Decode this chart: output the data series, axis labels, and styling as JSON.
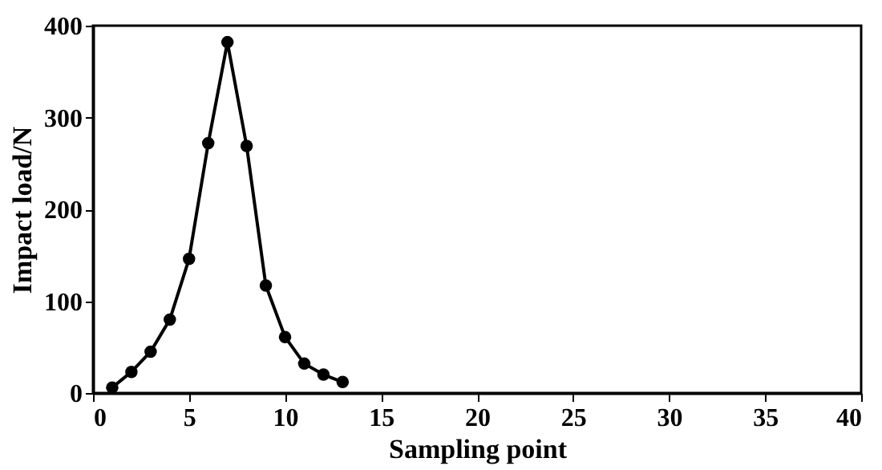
{
  "chart_data": {
    "type": "line",
    "xlabel": "Sampling point",
    "ylabel": "Impact load/N",
    "x": [
      1,
      2,
      3,
      4,
      5,
      6,
      7,
      8,
      9,
      10,
      11,
      12,
      13
    ],
    "series": [
      {
        "color": "#000000",
        "values": [
          6,
          23,
          45,
          80,
          146,
          272,
          382,
          269,
          117,
          61,
          32,
          20,
          12
        ]
      }
    ],
    "xlim": [
      0,
      40
    ],
    "xticks": [
      0,
      5,
      10,
      15,
      20,
      25,
      30,
      35,
      40
    ],
    "ylim": [
      0,
      400
    ],
    "yticks": [
      0,
      100,
      200,
      300,
      400
    ],
    "marker": "circle",
    "line_style": "solid",
    "grid": false
  }
}
